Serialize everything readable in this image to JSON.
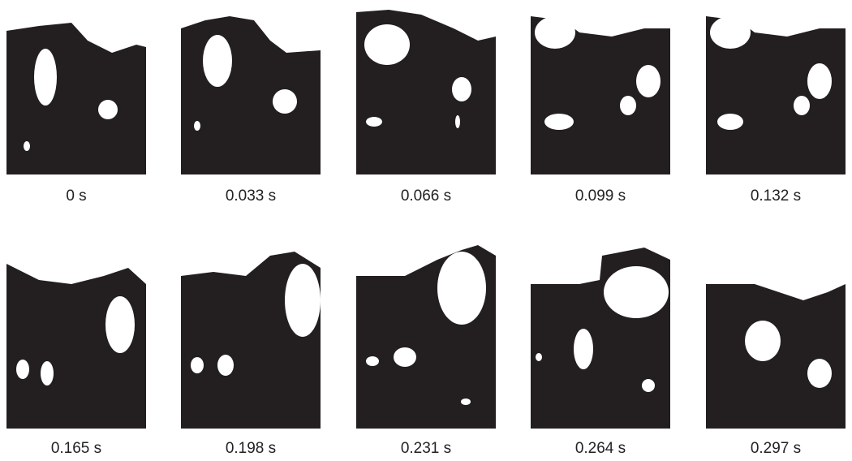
{
  "panels": [
    {
      "label": "0 s"
    },
    {
      "label": "0.033 s"
    },
    {
      "label": "0.066 s"
    },
    {
      "label": "0.099 s"
    },
    {
      "label": "0.132 s"
    },
    {
      "label": "0.165 s"
    },
    {
      "label": "0.198 s"
    },
    {
      "label": "0.231 s"
    },
    {
      "label": "0.264 s"
    },
    {
      "label": "0.297 s"
    }
  ]
}
